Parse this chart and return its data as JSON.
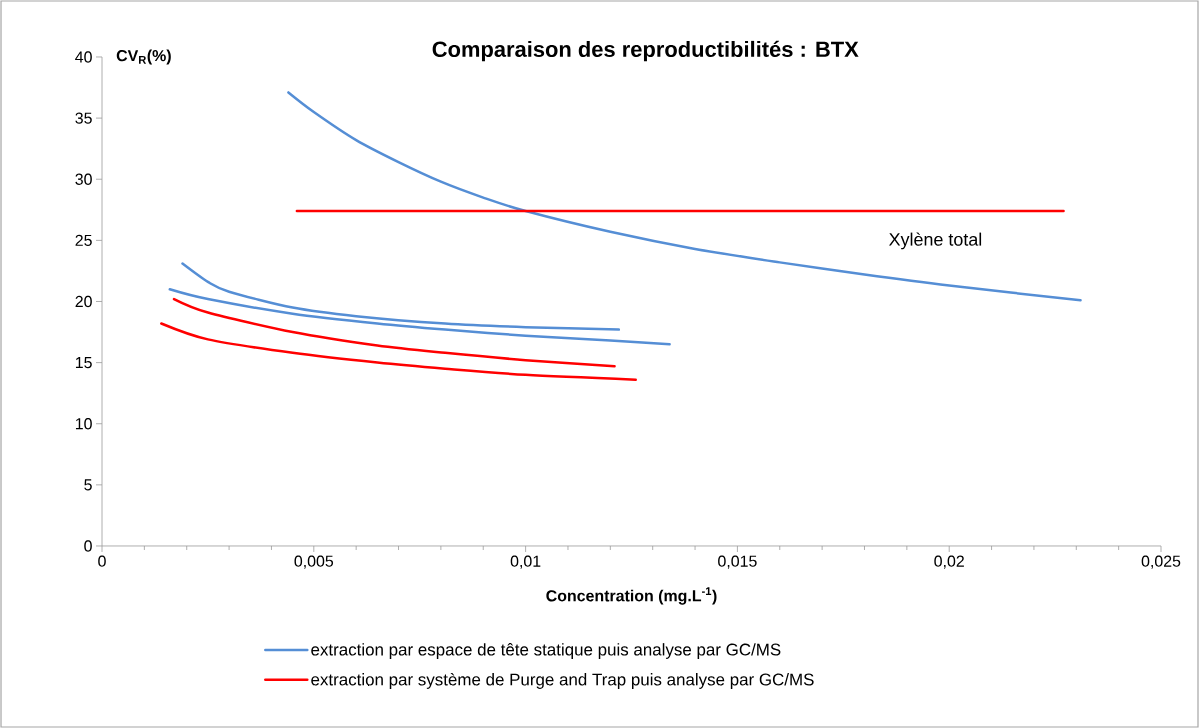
{
  "chart_data": {
    "type": "line",
    "title": "Comparaison des reproductibilités : BTX",
    "xlabel": "Concentration (mg.L$^{-1}$)",
    "ylabel": "CV$_{R}$(%)",
    "xlim": [
      0,
      0.025
    ],
    "ylim": [
      0,
      40
    ],
    "xticks": [
      0,
      {
        "value": 0.005,
        "label": "0,005"
      },
      {
        "value": 0.01,
        "label": "0,01"
      },
      {
        "value": 0.015,
        "label": "0,015"
      },
      {
        "value": 0.02,
        "label": "0,02"
      },
      {
        "value": 0.025,
        "label": "0,025"
      }
    ],
    "yticks": [
      0,
      5,
      10,
      15,
      20,
      25,
      30,
      35,
      40
    ],
    "legend": "bottom",
    "annotations": [
      "Xylène total"
    ],
    "series": [
      {
        "name": "extraction par espace de tête statique puis analyse par GC/MS",
        "color": "#558ed5",
        "x": [
          0.0044,
          0.005,
          0.006,
          0.007,
          0.008,
          0.009,
          0.01,
          0.012,
          0.014,
          0.016,
          0.018,
          0.02,
          0.0231
        ],
        "values": [
          37.1,
          35.5,
          33.2,
          31.4,
          29.8,
          28.5,
          27.4,
          25.7,
          24.3,
          23.2,
          22.2,
          21.3,
          20.1
        ]
      },
      {
        "name": "extraction par système de Purge and Trap puis analyse par GC/MS",
        "color": "#ff0000",
        "x": [
          0.0046,
          0.0227
        ],
        "values": [
          27.4,
          27.4
        ]
      },
      {
        "color": "#558ed5",
        "x": [
          0.0019,
          0.0025,
          0.003,
          0.0045,
          0.006,
          0.0081,
          0.01,
          0.0122
        ],
        "values": [
          23.1,
          21.6,
          20.8,
          19.5,
          18.8,
          18.2,
          17.9,
          17.7
        ]
      },
      {
        "color": "#558ed5",
        "x": [
          0.0016,
          0.0025,
          0.0045,
          0.0065,
          0.0081,
          0.01,
          0.012,
          0.0134
        ],
        "values": [
          21.0,
          20.2,
          19.0,
          18.2,
          17.7,
          17.2,
          16.8,
          16.5
        ]
      },
      {
        "color": "#ff0000",
        "x": [
          0.0017,
          0.0025,
          0.0045,
          0.0065,
          0.0081,
          0.01,
          0.0121
        ],
        "values": [
          20.2,
          19.1,
          17.5,
          16.4,
          15.8,
          15.2,
          14.7
        ]
      },
      {
        "color": "#ff0000",
        "x": [
          0.0014,
          0.0025,
          0.0045,
          0.0065,
          0.0081,
          0.01,
          0.0126
        ],
        "values": [
          18.2,
          16.9,
          15.8,
          15.0,
          14.5,
          14.0,
          13.6
        ]
      }
    ]
  }
}
